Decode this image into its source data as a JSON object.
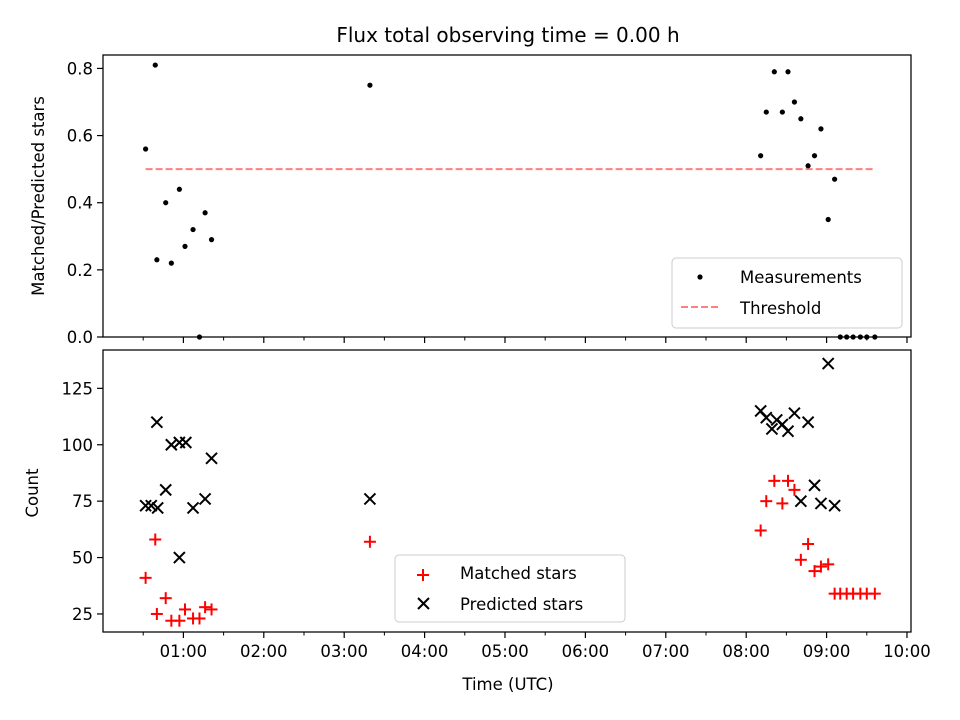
{
  "chart_data": [
    {
      "type": "scatter",
      "title": "Flux total observing time = 0.00 h",
      "xlabel": "",
      "ylabel": "Matched/Predicted stars",
      "xlim": [
        0.0,
        10.05
      ],
      "ylim": [
        0.0,
        0.84
      ],
      "yticks": [
        0.0,
        0.2,
        0.4,
        0.6,
        0.8
      ],
      "ytick_labels": [
        "0.0",
        "0.2",
        "0.4",
        "0.6",
        "0.8"
      ],
      "legend_position": "lower-right",
      "series": [
        {
          "name": "Measurements",
          "marker": "dot",
          "color": "#000000",
          "points": [
            [
              0.53,
              0.56
            ],
            [
              0.65,
              0.81
            ],
            [
              0.67,
              0.23
            ],
            [
              0.78,
              0.4
            ],
            [
              0.85,
              0.22
            ],
            [
              0.95,
              0.44
            ],
            [
              1.02,
              0.27
            ],
            [
              1.12,
              0.32
            ],
            [
              1.2,
              0.0
            ],
            [
              1.27,
              0.37
            ],
            [
              1.35,
              0.29
            ],
            [
              3.32,
              0.75
            ],
            [
              8.18,
              0.54
            ],
            [
              8.25,
              0.67
            ],
            [
              8.35,
              0.79
            ],
            [
              8.45,
              0.67
            ],
            [
              8.52,
              0.79
            ],
            [
              8.6,
              0.7
            ],
            [
              8.68,
              0.65
            ],
            [
              8.77,
              0.51
            ],
            [
              8.85,
              0.54
            ],
            [
              8.93,
              0.62
            ],
            [
              9.02,
              0.35
            ],
            [
              9.1,
              0.47
            ],
            [
              9.17,
              0.0
            ],
            [
              9.25,
              0.0
            ],
            [
              9.33,
              0.0
            ],
            [
              9.42,
              0.0
            ],
            [
              9.5,
              0.0
            ],
            [
              9.6,
              0.0
            ]
          ]
        },
        {
          "name": "Threshold",
          "style": "dashed",
          "color": "#ff7f7f",
          "x": [
            0.53,
            9.6
          ],
          "y": [
            0.5,
            0.5
          ]
        }
      ]
    },
    {
      "type": "scatter",
      "title": "",
      "xlabel": "Time (UTC)",
      "ylabel": "Count",
      "xlim": [
        0.0,
        10.05
      ],
      "ylim": [
        17,
        142
      ],
      "xticks": [
        1,
        2,
        3,
        4,
        5,
        6,
        7,
        8,
        9,
        10
      ],
      "xtick_labels": [
        "01:00",
        "02:00",
        "03:00",
        "04:00",
        "05:00",
        "06:00",
        "07:00",
        "08:00",
        "09:00",
        "10:00"
      ],
      "yticks": [
        25,
        50,
        75,
        100,
        125
      ],
      "ytick_labels": [
        "25",
        "50",
        "75",
        "100",
        "125"
      ],
      "legend_position": "lower-center",
      "series": [
        {
          "name": "Matched stars",
          "marker": "plus",
          "color": "#ff0000",
          "points": [
            [
              0.53,
              41
            ],
            [
              0.65,
              58
            ],
            [
              0.67,
              25
            ],
            [
              0.78,
              32
            ],
            [
              0.85,
              22
            ],
            [
              0.95,
              22
            ],
            [
              1.02,
              27
            ],
            [
              1.12,
              23
            ],
            [
              1.2,
              23
            ],
            [
              1.27,
              28
            ],
            [
              1.35,
              27
            ],
            [
              3.32,
              57
            ],
            [
              8.18,
              62
            ],
            [
              8.25,
              75
            ],
            [
              8.35,
              84
            ],
            [
              8.45,
              74
            ],
            [
              8.52,
              84
            ],
            [
              8.6,
              80
            ],
            [
              8.68,
              49
            ],
            [
              8.77,
              56
            ],
            [
              8.85,
              44
            ],
            [
              8.93,
              46
            ],
            [
              9.02,
              47
            ],
            [
              9.1,
              34
            ],
            [
              9.17,
              34
            ],
            [
              9.25,
              34
            ],
            [
              9.33,
              34
            ],
            [
              9.42,
              34
            ],
            [
              9.5,
              34
            ],
            [
              9.6,
              34
            ]
          ]
        },
        {
          "name": "Predicted stars",
          "marker": "x",
          "color": "#000000",
          "points": [
            [
              0.53,
              73
            ],
            [
              0.6,
              73
            ],
            [
              0.67,
              110
            ],
            [
              0.68,
              72
            ],
            [
              0.78,
              80
            ],
            [
              0.85,
              100
            ],
            [
              0.95,
              101
            ],
            [
              0.95,
              50
            ],
            [
              1.03,
              101
            ],
            [
              1.12,
              72
            ],
            [
              1.27,
              76
            ],
            [
              1.35,
              94
            ],
            [
              3.32,
              76
            ],
            [
              8.18,
              115
            ],
            [
              8.25,
              112
            ],
            [
              8.32,
              107
            ],
            [
              8.38,
              111
            ],
            [
              8.45,
              109
            ],
            [
              8.52,
              106
            ],
            [
              8.6,
              114
            ],
            [
              8.68,
              75
            ],
            [
              8.77,
              110
            ],
            [
              8.85,
              82
            ],
            [
              8.93,
              74
            ],
            [
              9.02,
              136
            ],
            [
              9.1,
              73
            ]
          ]
        }
      ]
    }
  ]
}
